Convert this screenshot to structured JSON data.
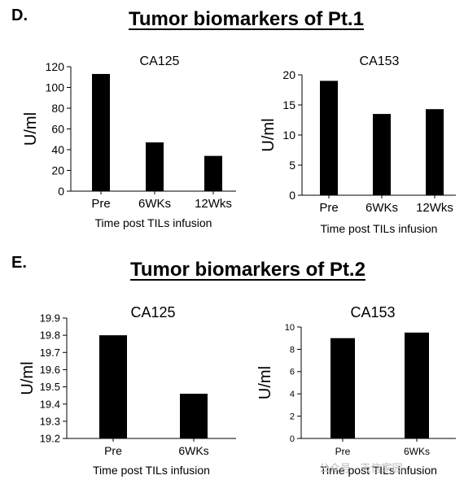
{
  "panels": {
    "d": {
      "letter": "D.",
      "title": "Tumor biomarkers of Pt.1"
    },
    "e": {
      "letter": "E.",
      "title": "Tumor biomarkers of Pt.2"
    }
  },
  "watermark": "公众号 · 天信家园",
  "chart_data": [
    {
      "type": "bar",
      "title": "CA125",
      "categories": [
        "Pre",
        "6WKs",
        "12Wks"
      ],
      "values": [
        113,
        47,
        34
      ],
      "ylabel": "U/ml",
      "xlabel": "Time post TILs infusion",
      "ylim": [
        0,
        120
      ],
      "yticks": [
        0,
        20,
        40,
        60,
        80,
        100,
        120
      ],
      "bar_color": "#000000"
    },
    {
      "type": "bar",
      "title": "CA153",
      "categories": [
        "Pre",
        "6WKs",
        "12Wks"
      ],
      "values": [
        19,
        13.5,
        14.3
      ],
      "ylabel": "U/ml",
      "xlabel": "Time post TILs infusion",
      "ylim": [
        0,
        20
      ],
      "yticks": [
        0,
        5,
        10,
        15,
        20
      ],
      "bar_color": "#000000"
    },
    {
      "type": "bar",
      "title": "CA125",
      "categories": [
        "Pre",
        "6WKs"
      ],
      "values": [
        19.8,
        19.46
      ],
      "ylabel": "U/ml",
      "xlabel": "Time post TILs infusion",
      "ylim": [
        19.2,
        19.9
      ],
      "yticks": [
        19.2,
        19.3,
        19.4,
        19.5,
        19.6,
        19.7,
        19.8,
        19.9
      ],
      "bar_color": "#000000"
    },
    {
      "type": "bar",
      "title": "CA153",
      "categories": [
        "Pre",
        "6WKs"
      ],
      "values": [
        9,
        9.5
      ],
      "ylabel": "U/ml",
      "xlabel": "Time post TILs infusion",
      "ylim": [
        0,
        10
      ],
      "yticks": [
        0,
        2,
        4,
        6,
        8,
        10
      ],
      "bar_color": "#000000"
    }
  ]
}
